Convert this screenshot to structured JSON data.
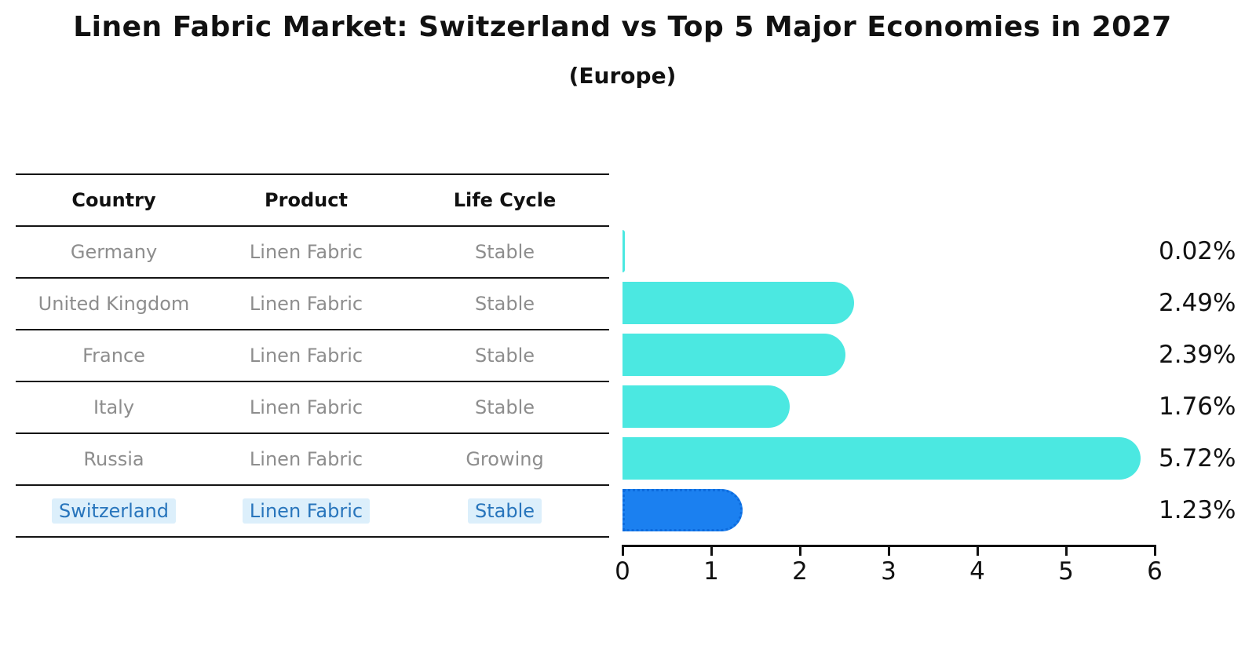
{
  "chart": {
    "title": "Linen Fabric Market: Switzerland vs Top 5 Major Economies in 2027",
    "subtitle": "(Europe)"
  },
  "table": {
    "headers": [
      "Country",
      "Product",
      "Life Cycle"
    ],
    "rows": [
      {
        "country": "Germany",
        "product": "Linen Fabric",
        "life_cycle": "Stable",
        "highlighted": false
      },
      {
        "country": "United Kingdom",
        "product": "Linen Fabric",
        "life_cycle": "Stable",
        "highlighted": false
      },
      {
        "country": "France",
        "product": "Linen Fabric",
        "life_cycle": "Stable",
        "highlighted": false
      },
      {
        "country": "Italy",
        "product": "Linen Fabric",
        "life_cycle": "Stable",
        "highlighted": false
      },
      {
        "country": "Russia",
        "product": "Linen Fabric",
        "life_cycle": "Growing",
        "highlighted": false
      },
      {
        "country": "Switzerland",
        "product": "Linen Fabric",
        "life_cycle": "Stable",
        "highlighted": true
      }
    ]
  },
  "chart_data": {
    "type": "bar",
    "orientation": "horizontal",
    "title": "Linen Fabric Market: Switzerland vs Top 5 Major Economies in 2027",
    "subtitle": "(Europe)",
    "categories": [
      "Germany",
      "United Kingdom",
      "France",
      "Italy",
      "Russia",
      "Switzerland"
    ],
    "values": [
      0.02,
      2.49,
      2.39,
      1.76,
      5.72,
      1.23
    ],
    "bar_labels": [
      "0.02%",
      "2.49%",
      "2.39%",
      "1.76%",
      "5.72%",
      "1.23%"
    ],
    "xlabel": "",
    "ylabel": "",
    "xlim": [
      0,
      6
    ],
    "x_ticks": [
      "0",
      "1",
      "2",
      "3",
      "4",
      "5",
      "6"
    ],
    "grid": false,
    "legend": false,
    "highlight_index": 5,
    "colors": {
      "bar_default": "#4be8e1",
      "bar_highlight": "#1b80f0",
      "bar_highlight_border": "#0d6bdd",
      "highlight_text": "#2875bc",
      "highlight_chip_bg": "#dceffb",
      "row_text": "#8d8d8d",
      "header_text": "#111111",
      "axis": "#111111"
    }
  }
}
